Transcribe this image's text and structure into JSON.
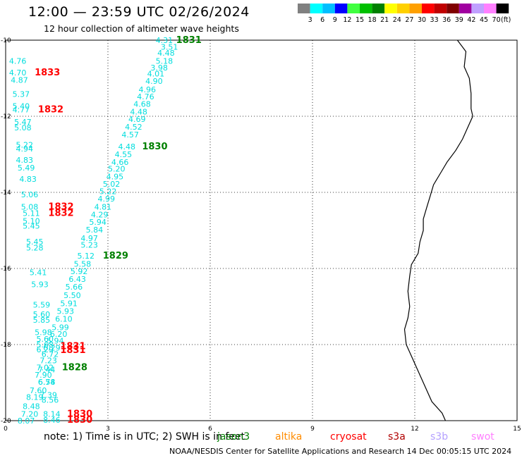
{
  "title": "12:00 — 23:59 UTC 02/26/2024",
  "subtitle": "12 hour collection of altimeter wave heights",
  "note": "note:  1) Time is in UTC; 2) SWH is in feet",
  "footer": "NOAA/NESDIS Center for Satellite Applications and Research   14 Dec 00:05:15 UTC 2024",
  "satellites": [
    {
      "name": "jason3",
      "color": "#008000"
    },
    {
      "name": "altika",
      "color": "#ff8c00"
    },
    {
      "name": "cryosat",
      "color": "#ff0000"
    },
    {
      "name": "s3a",
      "color": "#b00000"
    },
    {
      "name": "s3b",
      "color": "#b4a0ff"
    },
    {
      "name": "swot",
      "color": "#ff80ff"
    }
  ],
  "colorbar": {
    "ticks": [
      "3",
      "6",
      "9",
      "12",
      "15",
      "18",
      "21",
      "24",
      "27",
      "30",
      "33",
      "36",
      "39",
      "42",
      "45",
      "70",
      "(ft)"
    ],
    "colors": [
      "#808080",
      "#00ffff",
      "#00bfff",
      "#0000ff",
      "#40ff40",
      "#00c000",
      "#008000",
      "#ffff00",
      "#ffd000",
      "#ffa000",
      "#ff0000",
      "#c00000",
      "#800000",
      "#a000a0",
      "#c0a0ff",
      "#ff80ff",
      "#000000"
    ]
  },
  "map": {
    "lon_ticks": [
      "0",
      "3",
      "6",
      "9",
      "12",
      "15"
    ],
    "lat_ticks": [
      "-10",
      "-12",
      "-14",
      "-16",
      "-18",
      "-20"
    ],
    "lon_range": [
      0,
      15
    ],
    "lat_range": [
      -10,
      -20
    ],
    "coastline": [
      [
        13.25,
        -10.0
      ],
      [
        13.5,
        -10.3
      ],
      [
        13.45,
        -10.7
      ],
      [
        13.6,
        -11.0
      ],
      [
        13.65,
        -11.4
      ],
      [
        13.65,
        -11.8
      ],
      [
        13.7,
        -12.0
      ],
      [
        13.55,
        -12.3
      ],
      [
        13.4,
        -12.6
      ],
      [
        13.2,
        -12.9
      ],
      [
        12.95,
        -13.2
      ],
      [
        12.75,
        -13.5
      ],
      [
        12.55,
        -13.8
      ],
      [
        12.45,
        -14.1
      ],
      [
        12.35,
        -14.4
      ],
      [
        12.25,
        -14.7
      ],
      [
        12.25,
        -15.0
      ],
      [
        12.15,
        -15.3
      ],
      [
        12.1,
        -15.6
      ],
      [
        11.9,
        -15.9
      ],
      [
        11.85,
        -16.2
      ],
      [
        11.8,
        -16.6
      ],
      [
        11.85,
        -17.0
      ],
      [
        11.8,
        -17.3
      ],
      [
        11.7,
        -17.6
      ],
      [
        11.75,
        -18.0
      ],
      [
        11.9,
        -18.3
      ],
      [
        12.1,
        -18.7
      ],
      [
        12.3,
        -19.1
      ],
      [
        12.5,
        -19.5
      ],
      [
        12.8,
        -19.8
      ],
      [
        12.9,
        -20.0
      ]
    ]
  },
  "labels": [
    {
      "text": "4.31",
      "lon": 4.4,
      "lat": -10.0,
      "c": "#00dddd"
    },
    {
      "text": "3.51",
      "lon": 4.55,
      "lat": -10.18,
      "c": "#00dddd"
    },
    {
      "text": "4.48",
      "lon": 4.45,
      "lat": -10.33,
      "c": "#00dddd"
    },
    {
      "text": "5.18",
      "lon": 4.4,
      "lat": -10.55,
      "c": "#00dddd"
    },
    {
      "text": "3.98",
      "lon": 4.25,
      "lat": -10.72,
      "c": "#00dddd"
    },
    {
      "text": "4.01",
      "lon": 4.15,
      "lat": -10.88,
      "c": "#00dddd"
    },
    {
      "text": "4.90",
      "lon": 4.1,
      "lat": -11.07,
      "c": "#00dddd"
    },
    {
      "text": "4.96",
      "lon": 3.9,
      "lat": -11.3,
      "c": "#00dddd"
    },
    {
      "text": "4.76",
      "lon": 3.85,
      "lat": -11.48,
      "c": "#00dddd"
    },
    {
      "text": "4.68",
      "lon": 3.75,
      "lat": -11.68,
      "c": "#00dddd"
    },
    {
      "text": "4.48",
      "lon": 3.65,
      "lat": -11.88,
      "c": "#00dddd"
    },
    {
      "text": "4.69",
      "lon": 3.6,
      "lat": -12.07,
      "c": "#00dddd"
    },
    {
      "text": "4.52",
      "lon": 3.5,
      "lat": -12.28,
      "c": "#00dddd"
    },
    {
      "text": "4.57",
      "lon": 3.4,
      "lat": -12.48,
      "c": "#00dddd"
    },
    {
      "text": "4.48",
      "lon": 3.3,
      "lat": -12.8,
      "c": "#00dddd"
    },
    {
      "text": "4.55",
      "lon": 3.2,
      "lat": -13.0,
      "c": "#00dddd"
    },
    {
      "text": "4.66",
      "lon": 3.1,
      "lat": -13.2,
      "c": "#00dddd"
    },
    {
      "text": "5.20",
      "lon": 3.0,
      "lat": -13.38,
      "c": "#00dddd"
    },
    {
      "text": "4.95",
      "lon": 2.95,
      "lat": -13.58,
      "c": "#00dddd"
    },
    {
      "text": "5.02",
      "lon": 2.85,
      "lat": -13.78,
      "c": "#00dddd"
    },
    {
      "text": "5.22",
      "lon": 2.75,
      "lat": -13.97,
      "c": "#00dddd"
    },
    {
      "text": "4.99",
      "lon": 2.7,
      "lat": -14.17,
      "c": "#00dddd"
    },
    {
      "text": "4.81",
      "lon": 2.6,
      "lat": -14.38,
      "c": "#00dddd"
    },
    {
      "text": "4.29",
      "lon": 2.5,
      "lat": -14.58,
      "c": "#00dddd"
    },
    {
      "text": "5.94",
      "lon": 2.45,
      "lat": -14.78,
      "c": "#00dddd"
    },
    {
      "text": "5.84",
      "lon": 2.35,
      "lat": -14.98,
      "c": "#00dddd"
    },
    {
      "text": "4.97",
      "lon": 2.2,
      "lat": -15.2,
      "c": "#00dddd"
    },
    {
      "text": "5.23",
      "lon": 2.2,
      "lat": -15.38,
      "c": "#00dddd"
    },
    {
      "text": "5.12",
      "lon": 2.1,
      "lat": -15.67,
      "c": "#00dddd"
    },
    {
      "text": "5.58",
      "lon": 2.0,
      "lat": -15.88,
      "c": "#00dddd"
    },
    {
      "text": "5.92",
      "lon": 1.9,
      "lat": -16.07,
      "c": "#00dddd"
    },
    {
      "text": "6.43",
      "lon": 1.85,
      "lat": -16.28,
      "c": "#00dddd"
    },
    {
      "text": "5.66",
      "lon": 1.75,
      "lat": -16.48,
      "c": "#00dddd"
    },
    {
      "text": "5.50",
      "lon": 1.7,
      "lat": -16.7,
      "c": "#00dddd"
    },
    {
      "text": "5.91",
      "lon": 1.6,
      "lat": -16.92,
      "c": "#00dddd"
    },
    {
      "text": "5.93",
      "lon": 1.5,
      "lat": -17.12,
      "c": "#00dddd"
    },
    {
      "text": "6.10",
      "lon": 1.45,
      "lat": -17.32,
      "c": "#00dddd"
    },
    {
      "text": "5.99",
      "lon": 1.35,
      "lat": -17.55,
      "c": "#00dddd"
    },
    {
      "text": "6.20",
      "lon": 1.3,
      "lat": -17.72,
      "c": "#00dddd"
    },
    {
      "text": "5.94",
      "lon": 1.2,
      "lat": -17.9,
      "c": "#00dddd"
    },
    {
      "text": "6.29",
      "lon": 1.1,
      "lat": -18.08,
      "c": "#00dddd"
    },
    {
      "text": "6.72",
      "lon": 1.05,
      "lat": -18.25,
      "c": "#00dddd"
    },
    {
      "text": "7.23",
      "lon": 1.0,
      "lat": -18.42,
      "c": "#00dddd"
    },
    {
      "text": "7.02",
      "lon": 0.9,
      "lat": -18.6,
      "c": "#00dddd"
    },
    {
      "text": "7.90",
      "lon": 0.85,
      "lat": -18.8,
      "c": "#00dddd"
    },
    {
      "text": "6.54",
      "lon": 0.95,
      "lat": -18.98,
      "c": "#00dddd"
    },
    {
      "text": "7.60",
      "lon": 0.7,
      "lat": -19.2,
      "c": "#00dddd"
    },
    {
      "text": "7.39",
      "lon": 1.0,
      "lat": -19.32,
      "c": "#00dddd"
    },
    {
      "text": "8.56",
      "lon": 1.05,
      "lat": -19.45,
      "c": "#00dddd"
    },
    {
      "text": "8.19",
      "lon": 0.6,
      "lat": -19.38,
      "c": "#00dddd"
    },
    {
      "text": "8.48",
      "lon": 0.5,
      "lat": -19.62,
      "c": "#00dddd"
    },
    {
      "text": "7.20",
      "lon": 0.45,
      "lat": -19.82,
      "c": "#00dddd"
    },
    {
      "text": "8.14",
      "lon": 1.1,
      "lat": -19.82,
      "c": "#00dddd"
    },
    {
      "text": "8.07",
      "lon": 0.35,
      "lat": -20.0,
      "c": "#00dddd"
    },
    {
      "text": "8.46",
      "lon": 1.1,
      "lat": -19.98,
      "c": "#00dddd"
    },
    {
      "text": "4.76",
      "lon": 0.1,
      "lat": -10.55,
      "c": "#00dddd"
    },
    {
      "text": "4.70",
      "lon": 0.1,
      "lat": -10.85,
      "c": "#00dddd"
    },
    {
      "text": "4.87",
      "lon": 0.15,
      "lat": -11.05,
      "c": "#00dddd"
    },
    {
      "text": "5.37",
      "lon": 0.2,
      "lat": -11.42,
      "c": "#00dddd"
    },
    {
      "text": "5.40",
      "lon": 0.2,
      "lat": -11.73,
      "c": "#00dddd"
    },
    {
      "text": "4.77",
      "lon": 0.2,
      "lat": -11.82,
      "c": "#00dddd"
    },
    {
      "text": "5.47",
      "lon": 0.25,
      "lat": -12.15,
      "c": "#00dddd"
    },
    {
      "text": "5.08",
      "lon": 0.25,
      "lat": -12.3,
      "c": "#00dddd"
    },
    {
      "text": "5.22",
      "lon": 0.3,
      "lat": -12.75,
      "c": "#00dddd"
    },
    {
      "text": "4.94",
      "lon": 0.3,
      "lat": -12.85,
      "c": "#00dddd"
    },
    {
      "text": "4.83",
      "lon": 0.3,
      "lat": -13.15,
      "c": "#00dddd"
    },
    {
      "text": "5.49",
      "lon": 0.35,
      "lat": -13.35,
      "c": "#00dddd"
    },
    {
      "text": "4.83",
      "lon": 0.4,
      "lat": -13.65,
      "c": "#00dddd"
    },
    {
      "text": "5.06",
      "lon": 0.45,
      "lat": -14.06,
      "c": "#00dddd"
    },
    {
      "text": "5.08",
      "lon": 0.45,
      "lat": -14.38,
      "c": "#00dddd"
    },
    {
      "text": "5.11",
      "lon": 0.5,
      "lat": -14.55,
      "c": "#00dddd"
    },
    {
      "text": "5.10",
      "lon": 0.5,
      "lat": -14.75,
      "c": "#00dddd"
    },
    {
      "text": "5.45",
      "lon": 0.5,
      "lat": -14.88,
      "c": "#00dddd"
    },
    {
      "text": "5.45",
      "lon": 0.6,
      "lat": -15.3,
      "c": "#00dddd"
    },
    {
      "text": "5.28",
      "lon": 0.6,
      "lat": -15.45,
      "c": "#00dddd"
    },
    {
      "text": "5.41",
      "lon": 0.7,
      "lat": -16.1,
      "c": "#00dddd"
    },
    {
      "text": "5.93",
      "lon": 0.75,
      "lat": -16.42,
      "c": "#00dddd"
    },
    {
      "text": "5.59",
      "lon": 0.8,
      "lat": -16.95,
      "c": "#00dddd"
    },
    {
      "text": "5.60",
      "lon": 0.8,
      "lat": -17.2,
      "c": "#00dddd"
    },
    {
      "text": "5.85",
      "lon": 0.8,
      "lat": -17.35,
      "c": "#00dddd"
    },
    {
      "text": "5.98",
      "lon": 0.85,
      "lat": -17.68,
      "c": "#00dddd"
    },
    {
      "text": "5.60",
      "lon": 0.9,
      "lat": -17.85,
      "c": "#00dddd"
    },
    {
      "text": "5.68",
      "lon": 0.9,
      "lat": -18.0,
      "c": "#00dddd"
    },
    {
      "text": "6.29",
      "lon": 0.9,
      "lat": -18.13,
      "c": "#00dddd"
    },
    {
      "text": "7.44",
      "lon": 0.95,
      "lat": -18.66,
      "c": "#00dddd"
    },
    {
      "text": "6.78",
      "lon": 0.95,
      "lat": -18.98,
      "c": "#00dddd"
    },
    {
      "text": "1831",
      "lon": 5.0,
      "lat": -10.0,
      "c": "#008000",
      "big": true
    },
    {
      "text": "1830",
      "lon": 4.0,
      "lat": -12.8,
      "c": "#008000",
      "big": true
    },
    {
      "text": "1829",
      "lon": 2.85,
      "lat": -15.67,
      "c": "#008000",
      "big": true
    },
    {
      "text": "1828",
      "lon": 1.65,
      "lat": -18.6,
      "c": "#008000",
      "big": true
    },
    {
      "text": "1833",
      "lon": 0.85,
      "lat": -10.85,
      "c": "#ff0000",
      "big": true
    },
    {
      "text": "1832",
      "lon": 0.95,
      "lat": -11.82,
      "c": "#ff0000",
      "big": true
    },
    {
      "text": "1832",
      "lon": 1.25,
      "lat": -14.38,
      "c": "#ff0000",
      "big": true
    },
    {
      "text": "1832",
      "lon": 1.25,
      "lat": -14.55,
      "c": "#ff0000",
      "big": true
    },
    {
      "text": "1831",
      "lon": 1.6,
      "lat": -18.05,
      "c": "#ff0000",
      "big": true
    },
    {
      "text": "1831",
      "lon": 1.6,
      "lat": -18.15,
      "c": "#ff0000",
      "big": true
    },
    {
      "text": "1830",
      "lon": 1.8,
      "lat": -19.82,
      "c": "#ff0000",
      "big": true
    },
    {
      "text": "1830",
      "lon": 1.8,
      "lat": -19.98,
      "c": "#ff0000",
      "big": true
    }
  ]
}
